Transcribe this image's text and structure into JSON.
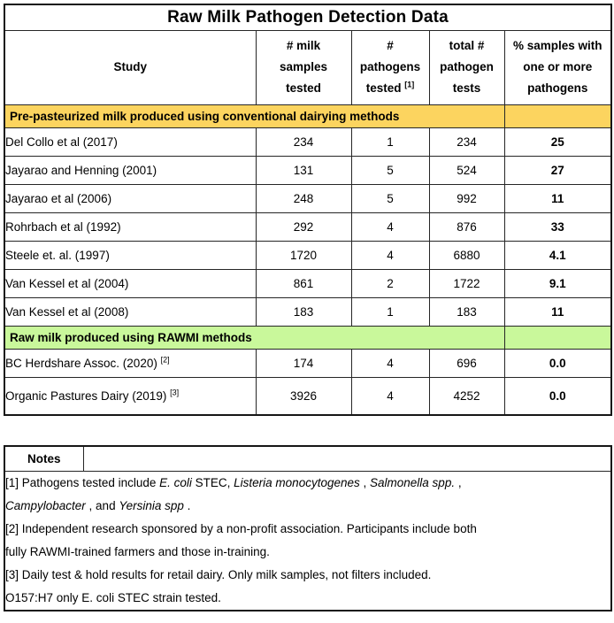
{
  "colors": {
    "conventional_bg": "#FCD45F",
    "rawmi_bg": "#C9F89B",
    "border": "#262626"
  },
  "table": {
    "title": "Raw Milk Pathogen Detection Data",
    "headers": [
      {
        "segments": [
          {
            "t": "Study"
          }
        ]
      },
      {
        "segments": [
          {
            "t": "# milk\nsamples\ntested"
          }
        ]
      },
      {
        "segments": [
          {
            "t": "#\npathogens\ntested "
          },
          {
            "t": "[1]",
            "sup": true
          }
        ]
      },
      {
        "segments": [
          {
            "t": "total #\npathogen\ntests"
          }
        ]
      },
      {
        "segments": [
          {
            "t": "% samples with\none or more\npathogens"
          }
        ]
      }
    ],
    "sections": [
      {
        "header": "Pre-pasteurized milk produced using conventional dairying methods",
        "rows": [
          {
            "study": [
              {
                "t": "Del Collo et al (2017)"
              }
            ],
            "samples": "234",
            "pathogens": "1",
            "tests": "234",
            "pct": "25"
          },
          {
            "study": [
              {
                "t": "Jayarao and Henning (2001)"
              }
            ],
            "samples": "131",
            "pathogens": "5",
            "tests": "524",
            "pct": "27"
          },
          {
            "study": [
              {
                "t": "Jayarao et al (2006)"
              }
            ],
            "samples": "248",
            "pathogens": "5",
            "tests": "992",
            "pct": "11"
          },
          {
            "study": [
              {
                "t": "Rohrbach et al (1992)"
              }
            ],
            "samples": "292",
            "pathogens": "4",
            "tests": "876",
            "pct": "33"
          },
          {
            "study": [
              {
                "t": "Steele et. al. (1997)"
              }
            ],
            "samples": "1720",
            "pathogens": "4",
            "tests": "6880",
            "pct": "4.1"
          },
          {
            "study": [
              {
                "t": "Van Kessel et al (2004)"
              }
            ],
            "samples": "861",
            "pathogens": "2",
            "tests": "1722",
            "pct": "9.1"
          },
          {
            "study": [
              {
                "t": "Van Kessel et al (2008)"
              }
            ],
            "samples": "183",
            "pathogens": "1",
            "tests": "183",
            "pct": "11"
          }
        ]
      },
      {
        "header": "Raw milk produced using RAWMI methods",
        "rows": [
          {
            "study": [
              {
                "t": "BC Herdshare Assoc. (2020) "
              },
              {
                "t": "[2]",
                "sup": true
              }
            ],
            "samples": "174",
            "pathogens": "4",
            "tests": "696",
            "pct": "0.0"
          },
          {
            "study": [
              {
                "t": "Organic Pastures Dairy (2019) "
              },
              {
                "t": "[3]",
                "sup": true
              }
            ],
            "samples": "3926",
            "pathogens": "4",
            "tests": "4252",
            "pct": "0.0"
          }
        ]
      }
    ]
  },
  "notes": {
    "header": "Notes",
    "lines": [
      [
        {
          "t": "[1] Pathogens tested include "
        },
        {
          "t": "E. coli",
          "i": true
        },
        {
          "t": " STEC, "
        },
        {
          "t": "Listeria monocytogenes",
          "i": true
        },
        {
          "t": " , "
        },
        {
          "t": "Salmonella spp.",
          "i": true
        },
        {
          "t": " ,"
        }
      ],
      [
        {
          "t": "Campylobacter",
          "i": true
        },
        {
          "t": " , and "
        },
        {
          "t": "Yersinia spp",
          "i": true
        },
        {
          "t": " ."
        }
      ],
      [
        {
          "t": "[2] Independent research sponsored by a non-profit association. Participants include both"
        }
      ],
      [
        {
          "t": "fully RAWMI-trained farmers and those in-training."
        }
      ],
      [
        {
          "t": "[3] Daily test & hold results for retail dairy. Only milk samples, not filters included."
        }
      ],
      [
        {
          "t": "O157:H7 only E. coli STEC strain tested."
        }
      ]
    ]
  }
}
